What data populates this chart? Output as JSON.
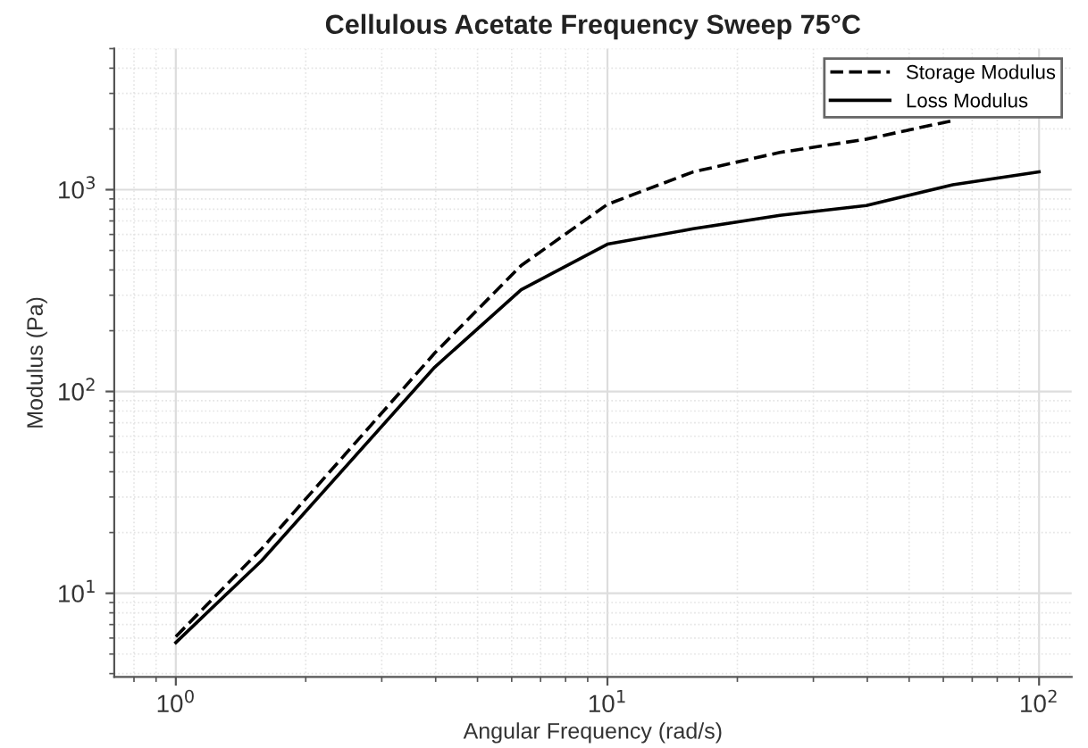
{
  "chart_data": {
    "type": "line",
    "title": "Cellulous Acetate Frequency Sweep 75°C",
    "xlabel": "Angular Frequency (rad/s)",
    "ylabel": "Modulus (Pa)",
    "x": [
      1,
      1.58,
      3.98,
      6.31,
      10,
      15.8,
      25.1,
      39.8,
      63.1,
      100
    ],
    "series": [
      {
        "name": "Storage Modulus",
        "color": "#000000",
        "line_style": "dashed",
        "values": [
          6.1,
          16.6,
          155,
          421,
          846,
          1225,
          1530,
          1780,
          2200,
          null
        ]
      },
      {
        "name": "Loss Modulus",
        "color": "#000000",
        "line_style": "solid",
        "values": [
          5.7,
          14.5,
          132,
          319,
          537,
          640,
          746,
          834,
          1058,
          1225
        ]
      }
    ],
    "log": "xy",
    "xlim": [
      0.72,
      119
    ],
    "ylim": [
      3.85,
      5000
    ],
    "xticks": [
      {
        "value": 1,
        "label": "10$^{0}$"
      },
      {
        "value": 10,
        "label": "10$^{1}$"
      },
      {
        "value": 100,
        "label": "10$^{2}$"
      }
    ],
    "yticks": [
      {
        "value": 10,
        "label": "10$^{1}$"
      },
      {
        "value": 100,
        "label": "10$^{2}$"
      },
      {
        "value": 1000,
        "label": "10$^{3}$"
      }
    ],
    "grid": true,
    "legend": "top right",
    "marker": "none"
  }
}
